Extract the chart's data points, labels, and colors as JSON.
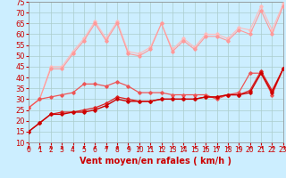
{
  "bg_color": "#cceeff",
  "grid_color": "#aacccc",
  "xlabel": "Vent moyen/en rafales ( km/h )",
  "xlabel_color": "#cc0000",
  "xlabel_fontsize": 7,
  "xlim": [
    0,
    23
  ],
  "ylim": [
    10,
    75
  ],
  "yticks": [
    10,
    15,
    20,
    25,
    30,
    35,
    40,
    45,
    50,
    55,
    60,
    65,
    70,
    75
  ],
  "xticks": [
    0,
    1,
    2,
    3,
    4,
    5,
    6,
    7,
    8,
    9,
    10,
    11,
    12,
    13,
    14,
    15,
    16,
    17,
    18,
    19,
    20,
    21,
    22,
    23
  ],
  "x": [
    0,
    1,
    2,
    3,
    4,
    5,
    6,
    7,
    8,
    9,
    10,
    11,
    12,
    13,
    14,
    15,
    16,
    17,
    18,
    19,
    20,
    21,
    22,
    23
  ],
  "line1_y": [
    15,
    19,
    23,
    23,
    24,
    24,
    25,
    27,
    30,
    29,
    29,
    29,
    30,
    30,
    30,
    30,
    31,
    31,
    32,
    32,
    33,
    42,
    33,
    44
  ],
  "line2_y": [
    15,
    19,
    23,
    24,
    24,
    25,
    26,
    28,
    31,
    30,
    29,
    29,
    30,
    30,
    30,
    30,
    31,
    31,
    32,
    32,
    34,
    43,
    34,
    44
  ],
  "line3_y": [
    26,
    30,
    31,
    32,
    33,
    37,
    37,
    36,
    38,
    36,
    33,
    33,
    33,
    32,
    32,
    32,
    32,
    30,
    32,
    33,
    42,
    42,
    32,
    44
  ],
  "line4_y": [
    26,
    30,
    44,
    44,
    51,
    57,
    65,
    57,
    65,
    51,
    50,
    53,
    65,
    52,
    57,
    53,
    59,
    59,
    57,
    62,
    60,
    71,
    60,
    73
  ],
  "line5_y": [
    26,
    30,
    45,
    45,
    52,
    58,
    66,
    58,
    66,
    52,
    51,
    54,
    65,
    53,
    58,
    54,
    60,
    60,
    58,
    63,
    62,
    73,
    62,
    74
  ],
  "line1_color": "#cc0000",
  "line2_color": "#dd2222",
  "line3_color": "#ee5555",
  "line4_color": "#ff9999",
  "line5_color": "#ffbbbb",
  "arrow_color": "#cc0000",
  "tick_color": "#cc0000",
  "tick_fontsize": 5.5,
  "ytick_fontsize": 6.0
}
